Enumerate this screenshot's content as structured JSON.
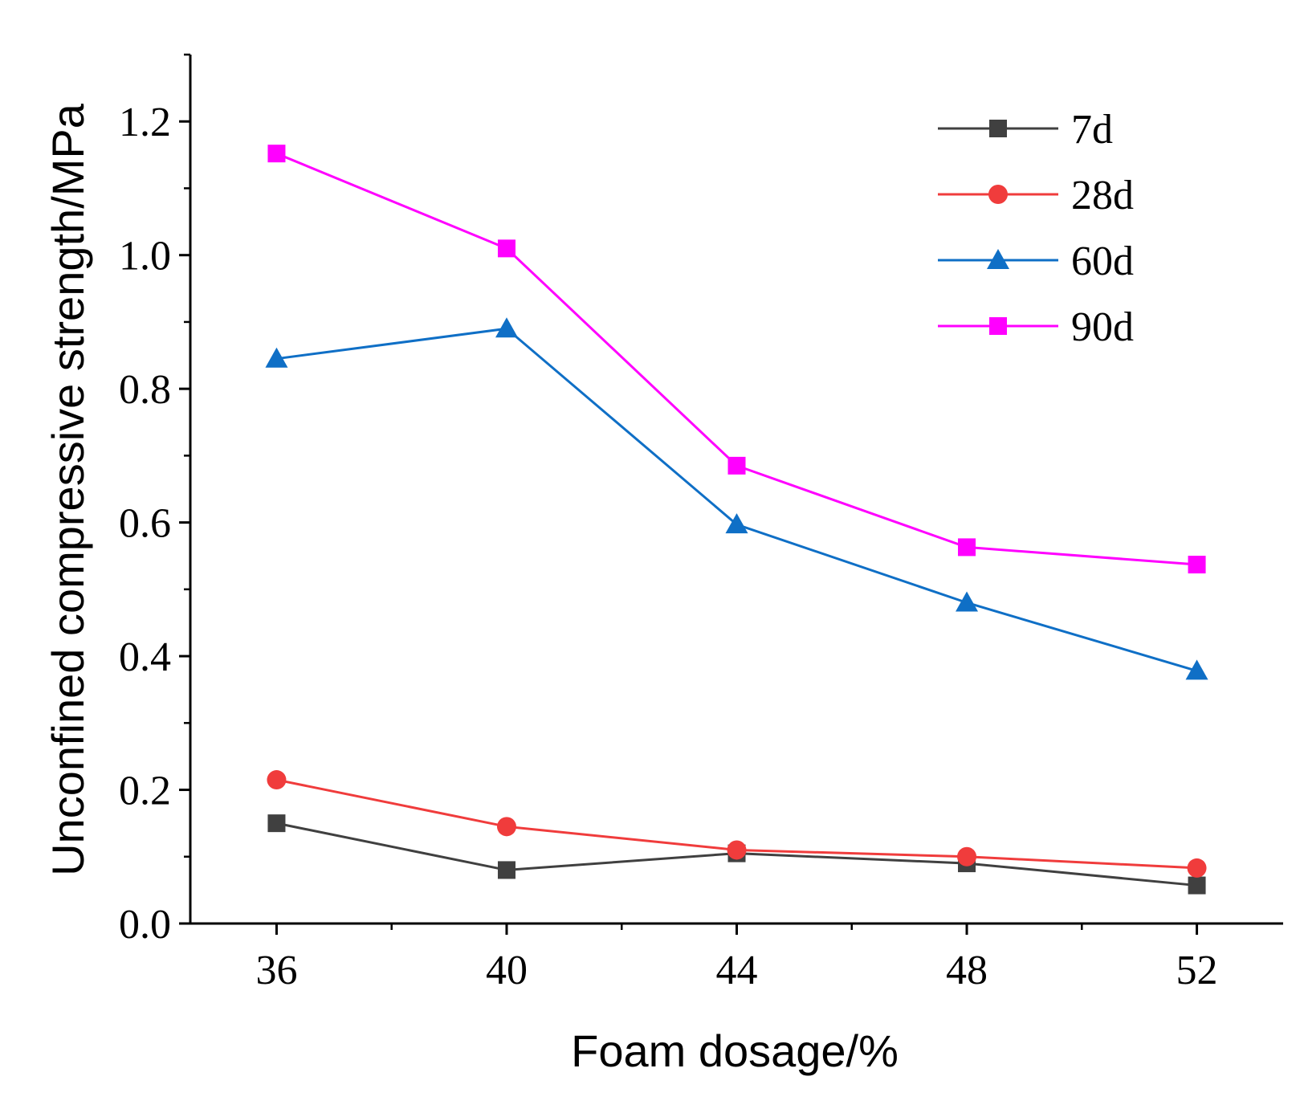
{
  "chart_data": {
    "type": "line",
    "title": "",
    "xlabel": "Foam dosage/%",
    "ylabel": "Unconfined compressive strength/MPa",
    "x": [
      36,
      40,
      44,
      48,
      52
    ],
    "x_tick_labels": [
      "36",
      "40",
      "44",
      "48",
      "52"
    ],
    "y_tick_labels": [
      "0.0",
      "0.2",
      "0.4",
      "0.6",
      "0.8",
      "1.0",
      "1.2"
    ],
    "xlim": [
      34.5,
      53.5
    ],
    "ylim": [
      0,
      1.3
    ],
    "grid": false,
    "legend_position": "top-right",
    "series": [
      {
        "name": "7d",
        "marker": "square",
        "color": "#404040",
        "values": [
          0.15,
          0.08,
          0.105,
          0.09,
          0.057
        ]
      },
      {
        "name": "28d",
        "marker": "circle",
        "color": "#f03c3c",
        "values": [
          0.215,
          0.145,
          0.11,
          0.1,
          0.083
        ]
      },
      {
        "name": "60d",
        "marker": "triangle",
        "color": "#0f6fc6",
        "values": [
          0.845,
          0.89,
          0.597,
          0.48,
          0.378
        ]
      },
      {
        "name": "90d",
        "marker": "square",
        "color": "#ff00ff",
        "values": [
          1.152,
          1.01,
          0.685,
          0.563,
          0.537
        ]
      }
    ]
  }
}
